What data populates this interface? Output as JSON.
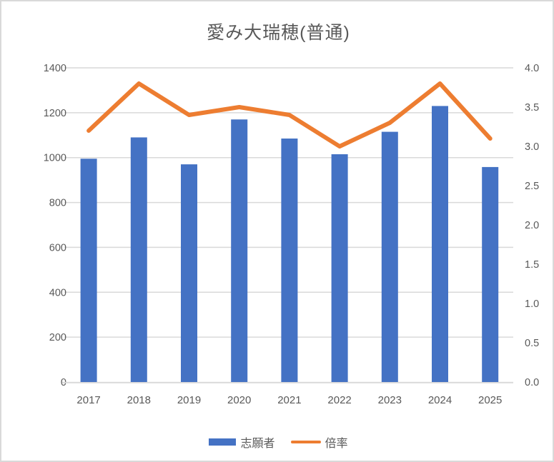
{
  "title": "愛み大瑞穂(普通)",
  "chart_data": {
    "type": "combo",
    "title": "愛み大瑞穂(普通)",
    "categories": [
      "2017",
      "2018",
      "2019",
      "2020",
      "2021",
      "2022",
      "2023",
      "2024",
      "2025"
    ],
    "series": [
      {
        "name": "志願者",
        "type": "bar",
        "axis": "left",
        "color": "#4472C4",
        "values": [
          995,
          1090,
          970,
          1170,
          1085,
          1015,
          1115,
          1230,
          958
        ]
      },
      {
        "name": "倍率",
        "type": "line",
        "axis": "right",
        "color": "#ED7D31",
        "values": [
          3.2,
          3.8,
          3.4,
          3.5,
          3.4,
          3.0,
          3.3,
          3.8,
          3.1
        ]
      }
    ],
    "axes": {
      "left": {
        "min": 0,
        "max": 1400,
        "step": 200,
        "tick_labels": [
          "0",
          "200",
          "400",
          "600",
          "800",
          "1000",
          "1200",
          "1400"
        ]
      },
      "right": {
        "min": 0,
        "max": 4.0,
        "step": 0.5,
        "tick_labels": [
          "0.0",
          "0.5",
          "1.0",
          "1.5",
          "2.0",
          "2.5",
          "3.0",
          "3.5",
          "4.0"
        ]
      }
    },
    "grid": true,
    "legend_position": "bottom"
  },
  "colors": {
    "text": "#595959",
    "gridline": "#D9D9D9",
    "axis_line": "#D9D9D9",
    "background": "#FFFFFF",
    "border": "#D9D9D9"
  }
}
